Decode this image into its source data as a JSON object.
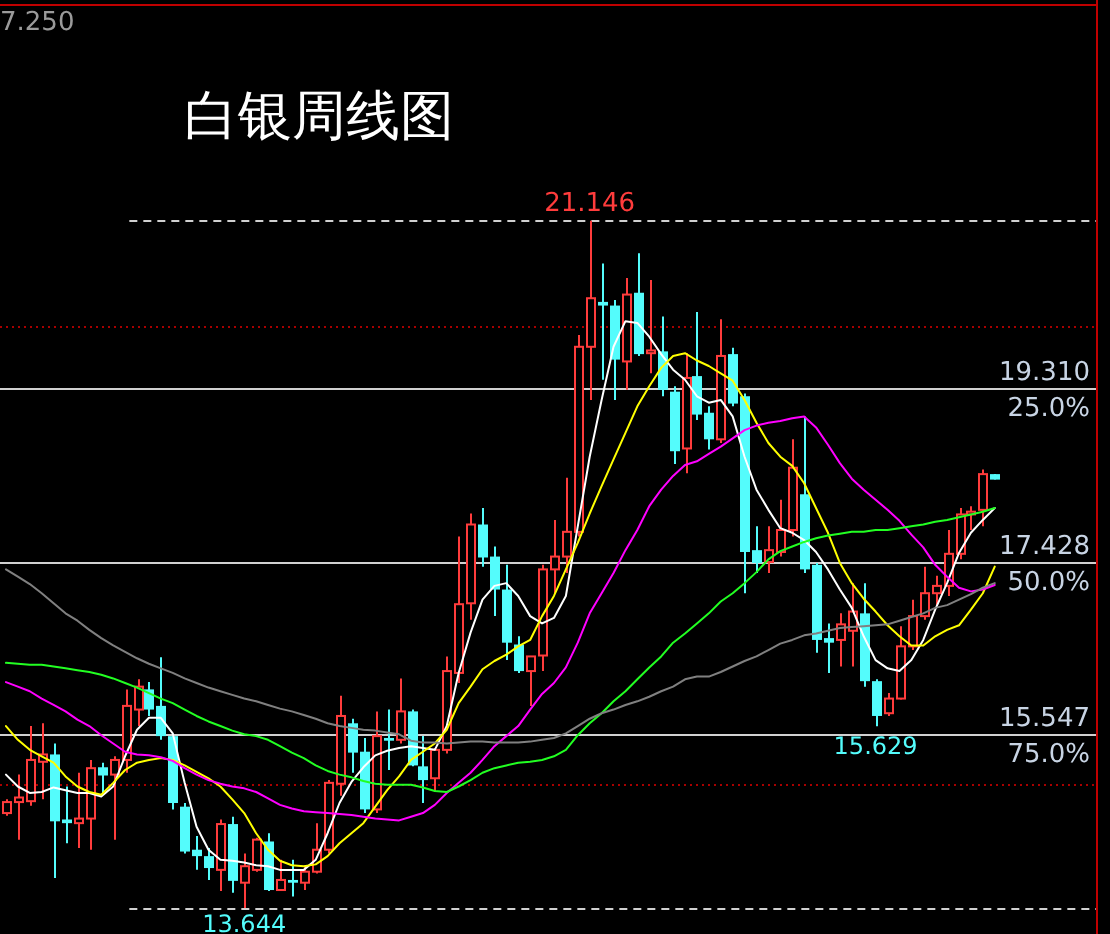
{
  "chart_data": {
    "type": "candlestick",
    "title": "白银周线图",
    "categories": [
      null,
      null,
      null,
      null,
      null,
      null,
      null,
      null,
      null,
      null,
      null,
      null,
      null,
      null,
      null,
      null,
      null,
      null,
      null,
      null,
      null,
      null,
      null,
      null,
      null,
      null,
      null,
      null,
      null,
      null,
      null,
      null,
      null,
      null,
      null,
      null,
      null,
      null,
      null,
      null,
      null,
      null,
      null,
      null,
      null,
      null,
      null,
      null,
      null,
      null,
      null,
      null,
      null,
      null,
      null,
      null,
      null,
      null,
      null,
      null,
      null,
      null,
      null,
      null,
      null,
      null,
      null,
      null,
      null,
      null,
      null,
      null,
      null,
      null,
      null,
      null,
      null,
      null,
      null,
      null,
      null,
      null,
      null,
      null,
      null,
      null,
      null,
      null,
      null,
      null,
      null,
      null
    ],
    "ohlc": [
      [
        14.68,
        14.83,
        14.65,
        14.8
      ],
      [
        14.8,
        15.1,
        14.39,
        14.85
      ],
      [
        14.81,
        15.63,
        14.76,
        15.26
      ],
      [
        15.24,
        15.66,
        14.83,
        15.32
      ],
      [
        15.32,
        15.44,
        13.97,
        14.59
      ],
      [
        14.61,
        14.97,
        14.35,
        14.57
      ],
      [
        14.57,
        15.12,
        14.3,
        14.62
      ],
      [
        14.62,
        15.26,
        14.28,
        15.17
      ],
      [
        15.18,
        15.23,
        14.9,
        15.09
      ],
      [
        15.1,
        15.3,
        14.39,
        15.26
      ],
      [
        15.26,
        16.03,
        15.12,
        15.85
      ],
      [
        15.81,
        16.14,
        15.63,
        16.06
      ],
      [
        16.03,
        16.11,
        15.74,
        15.81
      ],
      [
        15.85,
        16.38,
        15.48,
        15.52
      ],
      [
        15.52,
        15.55,
        14.72,
        14.79
      ],
      [
        14.75,
        14.79,
        14.24,
        14.26
      ],
      [
        14.28,
        14.43,
        14.06,
        14.21
      ],
      [
        14.21,
        14.3,
        13.95,
        14.08
      ],
      [
        14.06,
        14.61,
        13.83,
        14.56
      ],
      [
        14.56,
        14.64,
        13.81,
        13.94
      ],
      [
        13.92,
        14.24,
        13.644,
        14.1
      ],
      [
        14.06,
        14.41,
        14.04,
        14.39
      ],
      [
        14.37,
        14.46,
        13.83,
        13.84
      ],
      [
        13.84,
        14.17,
        13.83,
        13.95
      ],
      [
        13.95,
        14.17,
        13.77,
        13.92
      ],
      [
        13.92,
        14.1,
        13.84,
        14.04
      ],
      [
        14.04,
        14.57,
        14.02,
        14.28
      ],
      [
        14.28,
        15.04,
        14.24,
        15.01
      ],
      [
        15.0,
        15.96,
        14.87,
        15.74
      ],
      [
        15.66,
        15.71,
        15.12,
        15.34
      ],
      [
        15.35,
        15.5,
        14.68,
        14.72
      ],
      [
        14.72,
        15.79,
        14.68,
        15.52
      ],
      [
        15.5,
        15.81,
        15.15,
        15.47
      ],
      [
        15.48,
        16.15,
        15.44,
        15.79
      ],
      [
        15.79,
        15.81,
        15.19,
        15.2
      ],
      [
        15.19,
        15.52,
        14.79,
        15.04
      ],
      [
        15.06,
        15.39,
        14.91,
        15.37
      ],
      [
        15.37,
        16.39,
        15.33,
        16.23
      ],
      [
        16.21,
        17.7,
        16.1,
        16.96
      ],
      [
        16.97,
        17.95,
        16.79,
        17.83
      ],
      [
        17.83,
        18.01,
        17.37,
        17.47
      ],
      [
        17.48,
        17.59,
        16.83,
        17.12
      ],
      [
        17.12,
        17.39,
        16.35,
        16.54
      ],
      [
        16.52,
        16.61,
        16.21,
        16.23
      ],
      [
        16.23,
        16.39,
        15.85,
        16.39
      ],
      [
        16.4,
        17.39,
        16.23,
        17.34
      ],
      [
        17.34,
        17.88,
        17.08,
        17.48
      ],
      [
        17.48,
        18.34,
        17.3,
        17.75
      ],
      [
        17.75,
        19.9,
        17.7,
        19.77
      ],
      [
        19.77,
        21.146,
        19.19,
        20.3
      ],
      [
        20.26,
        20.68,
        19.41,
        20.22
      ],
      [
        20.22,
        20.28,
        19.19,
        19.63
      ],
      [
        19.61,
        20.52,
        19.3,
        20.34
      ],
      [
        20.36,
        20.79,
        19.67,
        19.69
      ],
      [
        19.7,
        20.5,
        19.48,
        19.73
      ],
      [
        19.72,
        20.1,
        19.23,
        19.3
      ],
      [
        19.28,
        19.34,
        18.49,
        18.63
      ],
      [
        18.66,
        19.7,
        18.39,
        19.43
      ],
      [
        19.45,
        20.15,
        18.97,
        19.03
      ],
      [
        19.05,
        19.12,
        18.65,
        18.76
      ],
      [
        18.76,
        20.07,
        18.72,
        19.67
      ],
      [
        19.69,
        19.76,
        19.12,
        19.15
      ],
      [
        19.23,
        19.26,
        17.08,
        17.53
      ],
      [
        17.55,
        17.81,
        17.3,
        17.41
      ],
      [
        17.42,
        17.81,
        17.3,
        17.55
      ],
      [
        17.53,
        18.1,
        17.48,
        17.77
      ],
      [
        17.77,
        18.76,
        17.7,
        18.45
      ],
      [
        18.16,
        19.01,
        17.3,
        17.34
      ],
      [
        17.39,
        17.41,
        16.43,
        16.57
      ],
      [
        16.59,
        16.75,
        16.21,
        16.54
      ],
      [
        16.57,
        16.86,
        16.28,
        16.74
      ],
      [
        16.67,
        17.19,
        16.28,
        16.88
      ],
      [
        16.86,
        17.19,
        16.06,
        16.12
      ],
      [
        16.12,
        16.14,
        15.629,
        15.74
      ],
      [
        15.77,
        15.99,
        15.74,
        15.93
      ],
      [
        15.93,
        16.72,
        15.92,
        16.5
      ],
      [
        16.5,
        17.01,
        16.46,
        16.83
      ],
      [
        16.83,
        17.37,
        16.79,
        17.08
      ],
      [
        17.08,
        17.27,
        16.94,
        17.16
      ],
      [
        17.16,
        17.77,
        17.05,
        17.51
      ],
      [
        17.51,
        18.01,
        17.45,
        17.94
      ],
      [
        17.94,
        18.03,
        17.77,
        17.97
      ],
      [
        17.99,
        18.43,
        17.81,
        18.38
      ],
      [
        18.38,
        18.38,
        18.32,
        18.32
      ],
      null,
      null,
      null,
      null,
      null,
      null,
      null,
      null
    ],
    "colors": [
      "#ff3c3c",
      "#ff3c3c",
      "#ff3c3c",
      "#ff3c3c",
      "#54fcfc",
      "#54fcfc",
      "#ff3c3c",
      "#ff3c3c",
      "#54fcfc",
      "#ff3c3c",
      "#ff3c3c",
      "#ff3c3c",
      "#54fcfc",
      "#54fcfc",
      "#54fcfc",
      "#54fcfc",
      "#54fcfc",
      "#54fcfc",
      "#ff3c3c",
      "#54fcfc",
      "#ff3c3c",
      "#ff3c3c",
      "#54fcfc",
      "#ff3c3c",
      "#54fcfc",
      "#ff3c3c",
      "#ff3c3c",
      "#ff3c3c",
      "#ff3c3c",
      "#54fcfc",
      "#54fcfc",
      "#ff3c3c",
      "#54fcfc",
      "#ff3c3c",
      "#54fcfc",
      "#54fcfc",
      "#ff3c3c",
      "#ff3c3c",
      "#ff3c3c",
      "#ff3c3c",
      "#54fcfc",
      "#54fcfc",
      "#54fcfc",
      "#54fcfc",
      "#ff3c3c",
      "#ff3c3c",
      "#ff3c3c",
      "#ff3c3c",
      "#ff3c3c",
      "#ff3c3c",
      "#54fcfc",
      "#54fcfc",
      "#ff3c3c",
      "#54fcfc",
      "#ff3c3c",
      "#54fcfc",
      "#54fcfc",
      "#ff3c3c",
      "#54fcfc",
      "#54fcfc",
      "#ff3c3c",
      "#54fcfc",
      "#54fcfc",
      "#54fcfc",
      "#ff3c3c",
      "#ff3c3c",
      "#ff3c3c",
      "#54fcfc",
      "#54fcfc",
      "#54fcfc",
      "#ff3c3c",
      "#ff3c3c",
      "#54fcfc",
      "#54fcfc",
      "#ff3c3c",
      "#ff3c3c",
      "#ff3c3c",
      "#ff3c3c",
      "#ff3c3c",
      "#ff3c3c",
      "#ff3c3c",
      "#ff3c3c",
      "#ff3c3c",
      "#54fcfc",
      null,
      null,
      null,
      null,
      null,
      null,
      null,
      null
    ],
    "series": [
      {
        "type": "line",
        "color": "#ffffff",
        "values": [
          15.1,
          14.97,
          14.9,
          14.91,
          14.96,
          14.93,
          14.9,
          14.9,
          14.86,
          14.97,
          15.3,
          15.59,
          15.72,
          15.72,
          15.55,
          15.01,
          14.53,
          14.28,
          14.17,
          14.16,
          14.14,
          14.11,
          14.1,
          14.06,
          14.06,
          14.06,
          14.17,
          14.46,
          14.79,
          15.02,
          15.18,
          15.31,
          15.36,
          15.39,
          15.41,
          15.39,
          15.37,
          15.63,
          16.21,
          16.65,
          17.01,
          17.16,
          17.19,
          17.05,
          16.83,
          16.75,
          16.81,
          17.05,
          17.81,
          18.57,
          19.19,
          19.77,
          20.05,
          20.03,
          19.88,
          19.69,
          19.52,
          19.41,
          19.23,
          19.16,
          19.19,
          19.01,
          18.57,
          18.21,
          17.99,
          17.79,
          17.74,
          17.66,
          17.53,
          17.34,
          17.12,
          16.92,
          16.61,
          16.35,
          16.26,
          16.23,
          16.35,
          16.57,
          16.9,
          17.19,
          17.52,
          17.74,
          17.88,
          18.01,
          null,
          null,
          null,
          null,
          null,
          null,
          null,
          null
        ]
      },
      {
        "type": "line",
        "color": "#ffff00",
        "values": [
          15.63,
          15.48,
          15.37,
          15.3,
          15.23,
          15.08,
          14.97,
          14.91,
          14.88,
          15.01,
          15.15,
          15.23,
          15.26,
          15.28,
          15.26,
          15.2,
          15.13,
          15.06,
          14.97,
          14.83,
          14.68,
          14.46,
          14.28,
          14.16,
          14.11,
          14.1,
          14.12,
          14.21,
          14.35,
          14.46,
          14.57,
          14.75,
          14.93,
          15.08,
          15.26,
          15.35,
          15.44,
          15.59,
          15.88,
          16.06,
          16.25,
          16.34,
          16.41,
          16.5,
          16.57,
          16.83,
          17.05,
          17.34,
          17.63,
          17.95,
          18.25,
          18.54,
          18.83,
          19.12,
          19.34,
          19.54,
          19.67,
          19.7,
          19.62,
          19.56,
          19.48,
          19.4,
          19.19,
          18.94,
          18.72,
          18.57,
          18.47,
          18.28,
          18.01,
          17.74,
          17.41,
          17.19,
          17.02,
          16.88,
          16.73,
          16.61,
          16.51,
          16.51,
          16.61,
          16.68,
          16.73,
          16.9,
          17.08,
          17.37,
          null,
          null,
          null,
          null,
          null,
          null,
          null,
          null
        ]
      },
      {
        "type": "line",
        "color": "#ff00ff",
        "values": [
          16.11,
          16.06,
          16.01,
          15.93,
          15.86,
          15.79,
          15.7,
          15.63,
          15.53,
          15.44,
          15.35,
          15.32,
          15.31,
          15.29,
          15.25,
          15.17,
          15.1,
          15.04,
          15.0,
          14.97,
          14.95,
          14.91,
          14.84,
          14.77,
          14.73,
          14.7,
          14.69,
          14.68,
          14.67,
          14.66,
          14.64,
          14.62,
          14.61,
          14.6,
          14.64,
          14.68,
          14.77,
          14.9,
          15.01,
          15.12,
          15.26,
          15.41,
          15.52,
          15.63,
          15.81,
          15.98,
          16.1,
          16.27,
          16.54,
          16.86,
          17.08,
          17.3,
          17.55,
          17.77,
          18.03,
          18.21,
          18.36,
          18.48,
          18.52,
          18.6,
          18.68,
          18.77,
          18.86,
          18.91,
          18.94,
          18.96,
          18.99,
          19.01,
          18.89,
          18.7,
          18.5,
          18.33,
          18.21,
          18.1,
          17.99,
          17.87,
          17.72,
          17.58,
          17.39,
          17.26,
          17.14,
          17.1,
          17.12,
          17.17,
          null,
          null,
          null,
          null,
          null,
          null,
          null,
          null
        ]
      },
      {
        "type": "line",
        "color": "#22ff22",
        "values": [
          16.32,
          16.31,
          16.3,
          16.3,
          16.28,
          16.26,
          16.24,
          16.22,
          16.19,
          16.15,
          16.1,
          16.05,
          15.99,
          15.93,
          15.88,
          15.81,
          15.74,
          15.68,
          15.63,
          15.58,
          15.54,
          15.52,
          15.48,
          15.41,
          15.34,
          15.28,
          15.2,
          15.14,
          15.1,
          15.07,
          15.03,
          15.0,
          14.99,
          14.99,
          14.99,
          14.96,
          14.92,
          14.91,
          14.97,
          15.04,
          15.12,
          15.17,
          15.2,
          15.23,
          15.24,
          15.26,
          15.3,
          15.37,
          15.53,
          15.66,
          15.77,
          15.9,
          16.01,
          16.14,
          16.27,
          16.39,
          16.54,
          16.64,
          16.75,
          16.86,
          16.99,
          17.08,
          17.19,
          17.31,
          17.45,
          17.54,
          17.59,
          17.64,
          17.68,
          17.71,
          17.73,
          17.75,
          17.75,
          17.77,
          17.77,
          17.79,
          17.81,
          17.83,
          17.86,
          17.88,
          17.91,
          17.94,
          17.97,
          18.01,
          null,
          null,
          null,
          null,
          null,
          null,
          null,
          null
        ]
      },
      {
        "type": "line",
        "color": "#808080",
        "values": [
          17.34,
          17.26,
          17.18,
          17.08,
          16.97,
          16.86,
          16.78,
          16.68,
          16.59,
          16.51,
          16.44,
          16.37,
          16.31,
          16.26,
          16.21,
          16.15,
          16.1,
          16.05,
          16.01,
          15.97,
          15.93,
          15.9,
          15.86,
          15.82,
          15.79,
          15.75,
          15.71,
          15.66,
          15.63,
          15.61,
          15.59,
          15.58,
          15.56,
          15.54,
          15.47,
          15.45,
          15.45,
          15.44,
          15.45,
          15.46,
          15.46,
          15.45,
          15.45,
          15.45,
          15.46,
          15.48,
          15.5,
          15.55,
          15.63,
          15.71,
          15.77,
          15.81,
          15.86,
          15.9,
          15.95,
          16.01,
          16.06,
          16.14,
          16.17,
          16.17,
          16.22,
          16.28,
          16.34,
          16.39,
          16.46,
          16.53,
          16.57,
          16.62,
          16.64,
          16.67,
          16.7,
          16.71,
          16.72,
          16.73,
          16.74,
          16.78,
          16.82,
          16.86,
          16.92,
          16.95,
          17.01,
          17.07,
          17.14,
          17.19,
          null,
          null,
          null,
          null,
          null,
          null,
          null,
          null
        ]
      }
    ],
    "ylim": [
      13.36,
      23.49
    ],
    "yticks": [
      {
        "value": 19.31,
        "label": "19.310"
      },
      {
        "value": 17.428,
        "label": "17.428"
      },
      {
        "value": 15.547,
        "label": "15.547"
      }
    ],
    "y2lim": [
      104.06,
      -30.54
    ],
    "y2ticks": [
      {
        "value": 25,
        "label": "25.0%"
      },
      {
        "value": 50,
        "label": "50.0%"
      },
      {
        "value": 75,
        "label": "75.0%"
      }
    ],
    "grid": "y",
    "tick_labels": "y",
    "ref_lines": [
      {
        "axis": "y",
        "value": 21.146,
        "color": "#d0d0d0",
        "line_style": "dashed"
      },
      {
        "axis": "y",
        "value": 20,
        "color": "#a80000",
        "line_style": "dotted"
      },
      {
        "axis": "y",
        "value": 15,
        "color": "#a80000",
        "line_style": "dotted"
      },
      {
        "axis": "y",
        "value": 13.644,
        "color": "#d0d0d0",
        "line_style": "dashed"
      }
    ],
    "annotations": [
      "7.250",
      {
        "text": "21.146",
        "y": 21.146
      },
      {
        "text": "13.644",
        "y": 13.644
      },
      {
        "text": "15.629",
        "y": 15.629
      }
    ]
  }
}
